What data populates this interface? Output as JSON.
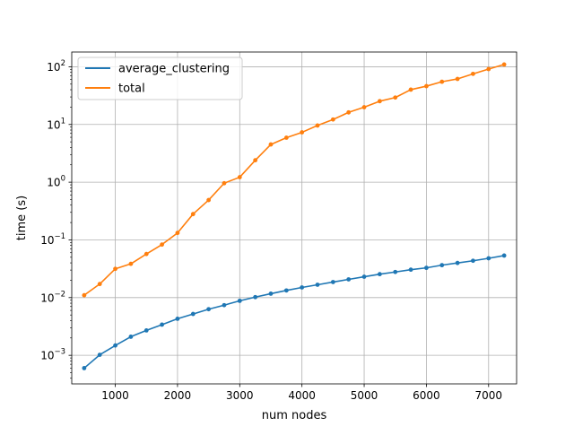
{
  "chart_data": {
    "type": "line",
    "xlabel": "num nodes",
    "ylabel": "time (s)",
    "xlim": [
      300,
      7450
    ],
    "ylim": [
      0.00032,
      180
    ],
    "yscale": "log",
    "grid": true,
    "legend_placement": "top-left",
    "x_ticks": [
      {
        "value": 1000,
        "label": "1000"
      },
      {
        "value": 2000,
        "label": "2000"
      },
      {
        "value": 3000,
        "label": "3000"
      },
      {
        "value": 4000,
        "label": "4000"
      },
      {
        "value": 5000,
        "label": "5000"
      },
      {
        "value": 6000,
        "label": "6000"
      },
      {
        "value": 7000,
        "label": "7000"
      }
    ],
    "y_ticks": [
      {
        "value": 0.001,
        "base": "10",
        "exp": "−3"
      },
      {
        "value": 0.01,
        "base": "10",
        "exp": "−2"
      },
      {
        "value": 0.1,
        "base": "10",
        "exp": "−1"
      },
      {
        "value": 1,
        "base": "10",
        "exp": "0"
      },
      {
        "value": 10,
        "base": "10",
        "exp": "1"
      },
      {
        "value": 100,
        "base": "10",
        "exp": "2"
      }
    ],
    "x": [
      500,
      750,
      1000,
      1250,
      1500,
      1750,
      2000,
      2250,
      2500,
      2750,
      3000,
      3250,
      3500,
      3750,
      4000,
      4250,
      4500,
      4750,
      5000,
      5250,
      5500,
      5750,
      6000,
      6250,
      6500,
      6750,
      7000,
      7250
    ],
    "series": [
      {
        "name": "average_clustering",
        "color": "#1f77b4",
        "values": [
          0.0006,
          0.00102,
          0.00148,
          0.0021,
          0.0027,
          0.0034,
          0.0043,
          0.0052,
          0.0063,
          0.0074,
          0.0088,
          0.0102,
          0.0117,
          0.0133,
          0.015,
          0.0167,
          0.0186,
          0.0207,
          0.023,
          0.0255,
          0.0278,
          0.0305,
          0.0328,
          0.0365,
          0.0398,
          0.0435,
          0.048,
          0.0535
        ]
      },
      {
        "name": "total",
        "color": "#ff7f0e",
        "values": [
          0.011,
          0.0172,
          0.0315,
          0.0385,
          0.057,
          0.083,
          0.132,
          0.28,
          0.49,
          0.96,
          1.22,
          2.4,
          4.5,
          5.9,
          7.3,
          9.6,
          12.2,
          16.2,
          19.9,
          25.3,
          29.3,
          40.1,
          46.1,
          55,
          61.5,
          75.3,
          91.2,
          109.5
        ]
      }
    ]
  }
}
